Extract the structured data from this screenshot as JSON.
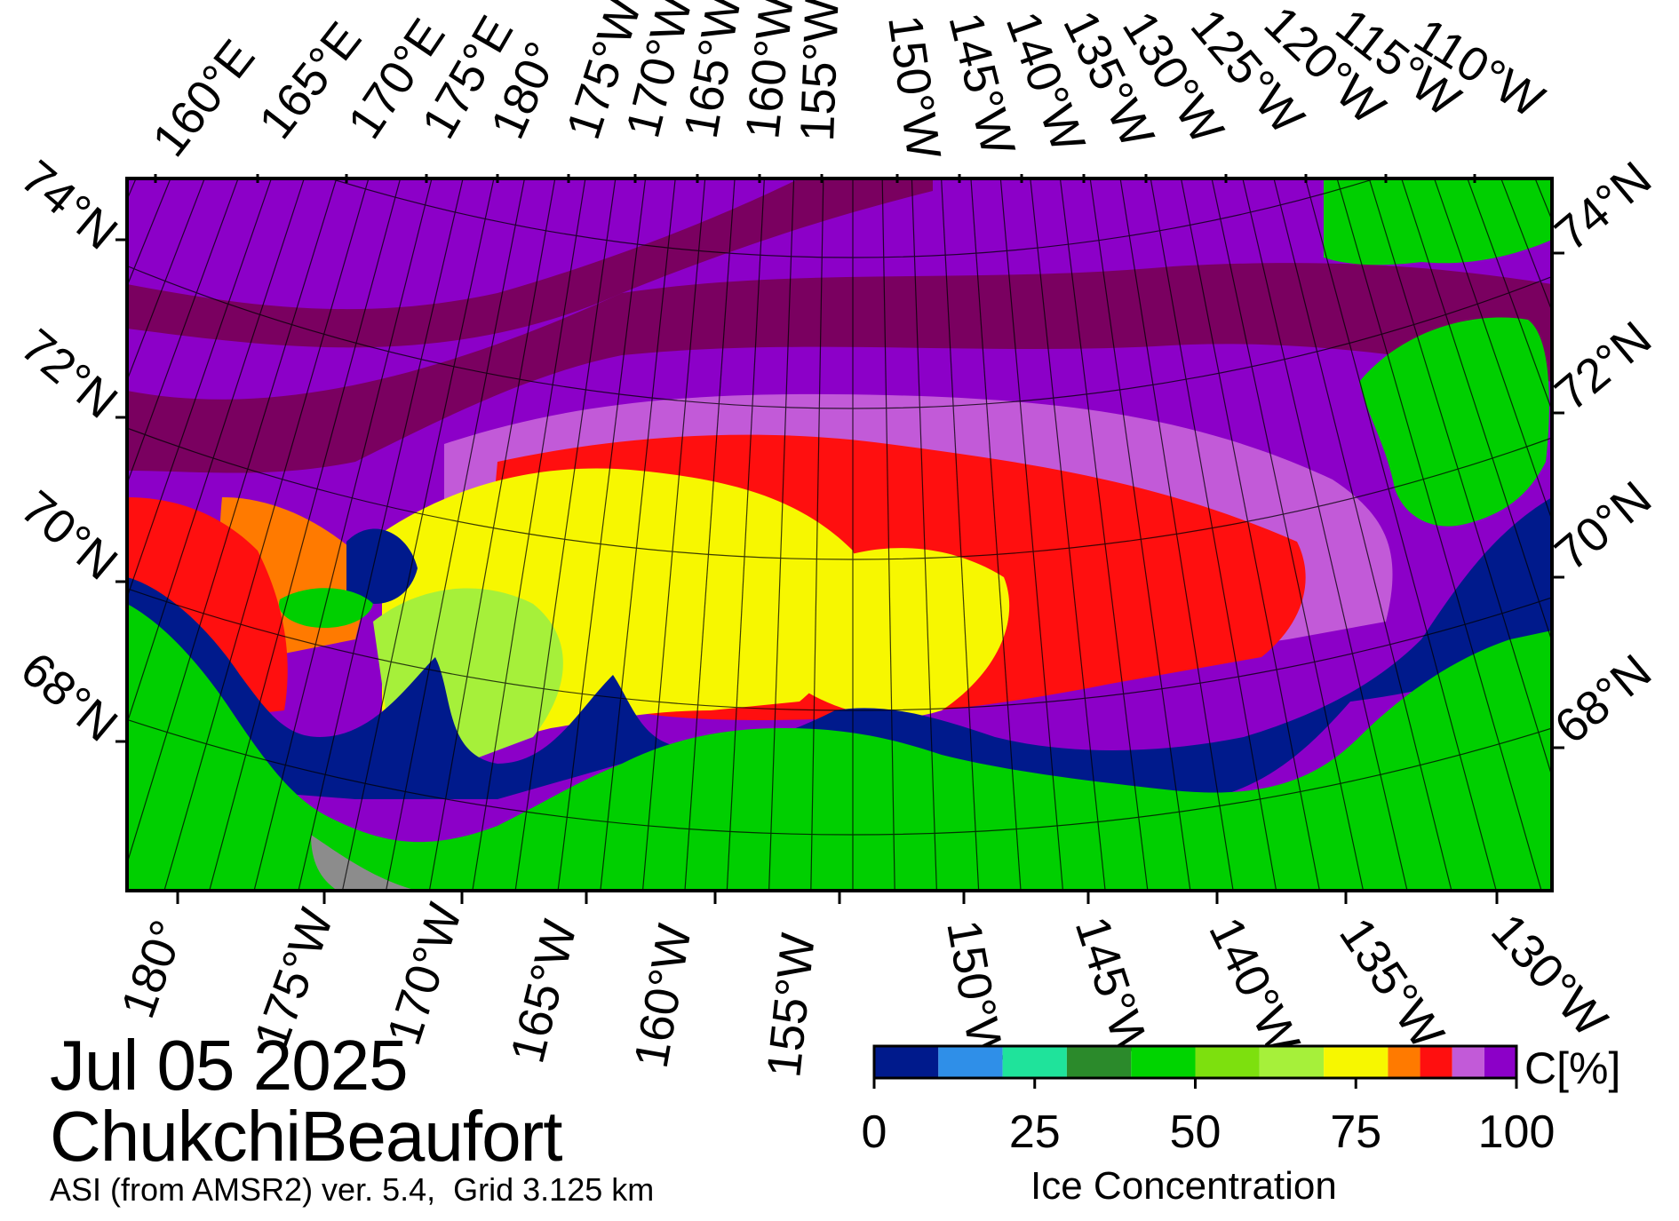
{
  "date": "Jul 05 2025",
  "region": "ChukchiBeaufort",
  "source": "ASI (from AMSR2) ver. 5.4,  Grid 3.125 km",
  "colorbar": {
    "title": "Ice Concentration",
    "unit": "C[%]",
    "ticks": [
      "0",
      "25",
      "50",
      "75",
      "100"
    ],
    "bins": [
      {
        "from": 0,
        "to": 10,
        "color": "#001a8c"
      },
      {
        "from": 10,
        "to": 20,
        "color": "#2f8fe8"
      },
      {
        "from": 20,
        "to": 30,
        "color": "#1fe39b"
      },
      {
        "from": 30,
        "to": 40,
        "color": "#2b8a2b"
      },
      {
        "from": 40,
        "to": 50,
        "color": "#00d400"
      },
      {
        "from": 50,
        "to": 60,
        "color": "#7de00e"
      },
      {
        "from": 60,
        "to": 70,
        "color": "#a6f03a"
      },
      {
        "from": 70,
        "to": 80,
        "color": "#f7f700"
      },
      {
        "from": 80,
        "to": 85,
        "color": "#ff7a00"
      },
      {
        "from": 85,
        "to": 90,
        "color": "#ff0f0f"
      },
      {
        "from": 90,
        "to": 95,
        "color": "#c25ad8"
      },
      {
        "from": 95,
        "to": 100,
        "color": "#8c00c8"
      }
    ]
  },
  "map": {
    "land_color": "#00cf00",
    "no_data_color": "#8c8c8c",
    "open_water_color": "#001a8c"
  },
  "top_lon_labels": [
    "160°E",
    "165°E",
    "170°E",
    "175°E",
    "180°",
    "175°W",
    "170°W",
    "165°W",
    "160°W",
    "155°W",
    "150°W",
    "145°W",
    "140°W",
    "135°W",
    "130°W",
    "125°W",
    "120°W",
    "115°W",
    "110°W"
  ],
  "bottom_lon_labels": [
    "180°",
    "175°W",
    "170°W",
    "165°W",
    "160°W",
    "155°W",
    "150°W",
    "145°W",
    "140°W",
    "135°W",
    "130°W"
  ],
  "left_lat_labels": [
    "74°N",
    "72°N",
    "70°N",
    "68°N"
  ],
  "right_lat_labels": [
    "74°N",
    "72°N",
    "70°N",
    "68°N"
  ]
}
